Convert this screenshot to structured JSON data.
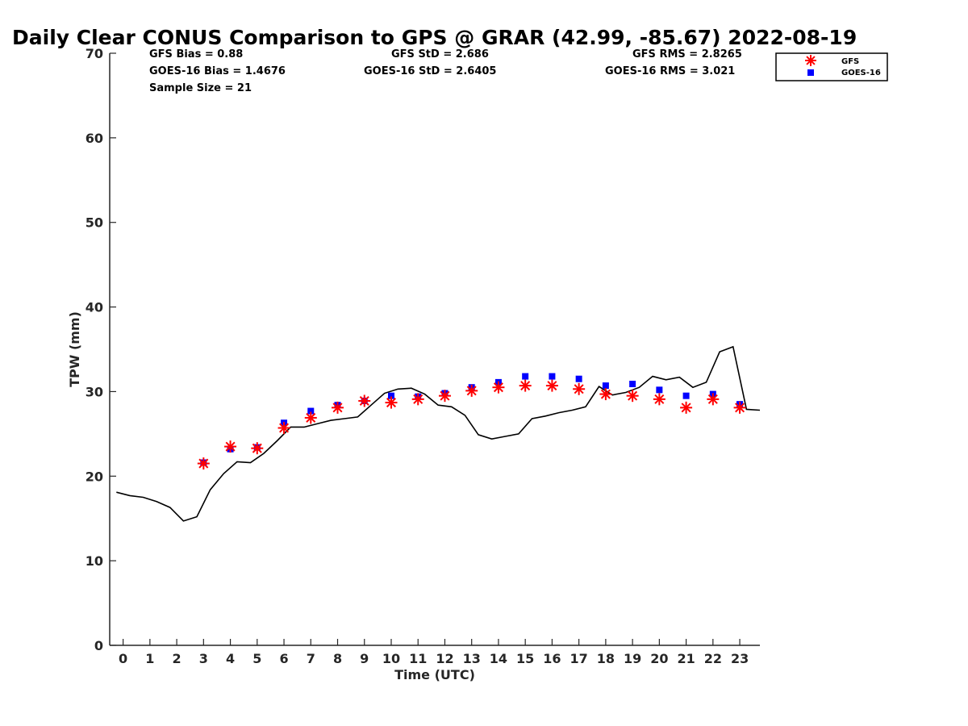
{
  "chart_data": {
    "type": "scatter",
    "title": "Daily Clear CONUS Comparison to GPS @ GRAR (42.99, -85.67) 2022-08-19",
    "xlabel": "Time (UTC)",
    "ylabel": "TPW (mm)",
    "xlim": [
      -0.5,
      23.75
    ],
    "ylim": [
      0,
      70
    ],
    "xticks": [
      0,
      1,
      2,
      3,
      4,
      5,
      6,
      7,
      8,
      9,
      10,
      11,
      12,
      13,
      14,
      15,
      16,
      17,
      18,
      19,
      20,
      21,
      22,
      23
    ],
    "yticks": [
      0,
      10,
      20,
      30,
      40,
      50,
      60,
      70
    ],
    "grid": false,
    "legend_position": "top-right",
    "stats": [
      [
        "GFS Bias = 0.88",
        "GFS StD = 2.686",
        "GFS RMS = 2.8265"
      ],
      [
        "GOES-16 Bias = 1.4676",
        "GOES-16 StD = 2.6405",
        "GOES-16 RMS = 3.021"
      ],
      [
        "Sample Size = 21",
        "",
        ""
      ]
    ],
    "series": [
      {
        "name": "GFS",
        "marker": "asterisk",
        "color": "#ff0000",
        "x": [
          3,
          4,
          5,
          6,
          7,
          8,
          9,
          10,
          11,
          12,
          13,
          14,
          15,
          16,
          17,
          18,
          19,
          20,
          21,
          22,
          23
        ],
        "y": [
          21.5,
          23.5,
          23.3,
          25.7,
          26.9,
          28.1,
          28.9,
          28.7,
          29.1,
          29.5,
          30.1,
          30.5,
          30.7,
          30.7,
          30.3,
          29.7,
          29.5,
          29.1,
          28.1,
          29.1,
          28.1
        ]
      },
      {
        "name": "GOES-16",
        "marker": "square",
        "color": "#0000ff",
        "x": [
          3,
          4,
          5,
          6,
          7,
          8,
          9,
          10,
          11,
          12,
          13,
          14,
          15,
          16,
          17,
          18,
          19,
          20,
          21,
          22,
          23
        ],
        "y": [
          21.6,
          23.2,
          23.4,
          26.3,
          27.7,
          28.4,
          28.9,
          29.5,
          29.4,
          29.8,
          30.5,
          31.1,
          31.8,
          31.8,
          31.5,
          30.7,
          30.9,
          30.2,
          29.5,
          29.7,
          28.5
        ]
      },
      {
        "name": "GPS",
        "marker": "line",
        "color": "#000000",
        "x": [
          -0.25,
          0.25,
          0.75,
          1.25,
          1.75,
          2.25,
          2.75,
          3.25,
          3.75,
          4.25,
          4.75,
          5.25,
          5.75,
          6.25,
          6.75,
          7.25,
          7.75,
          8.25,
          8.75,
          9.25,
          9.75,
          10.25,
          10.75,
          11.25,
          11.75,
          12.25,
          12.75,
          13.25,
          13.75,
          14.25,
          14.75,
          15.25,
          15.75,
          16.25,
          16.75,
          17.25,
          17.75,
          18.25,
          18.75,
          19.25,
          19.75,
          20.25,
          20.75,
          21.25,
          21.75,
          22.25,
          22.75,
          23.25,
          23.75
        ],
        "y": [
          18.1,
          17.7,
          17.5,
          17.0,
          16.3,
          14.7,
          15.2,
          18.4,
          20.3,
          21.7,
          21.6,
          22.7,
          24.2,
          25.8,
          25.8,
          26.2,
          26.6,
          26.8,
          27.0,
          28.4,
          29.8,
          30.3,
          30.4,
          29.7,
          28.4,
          28.2,
          27.2,
          24.9,
          24.4,
          24.7,
          25.0,
          26.8,
          27.1,
          27.5,
          27.8,
          28.2,
          30.6,
          29.6,
          29.9,
          30.5,
          31.8,
          31.4,
          31.7,
          30.5,
          31.1,
          34.7,
          35.3,
          27.9,
          27.8
        ]
      }
    ]
  }
}
